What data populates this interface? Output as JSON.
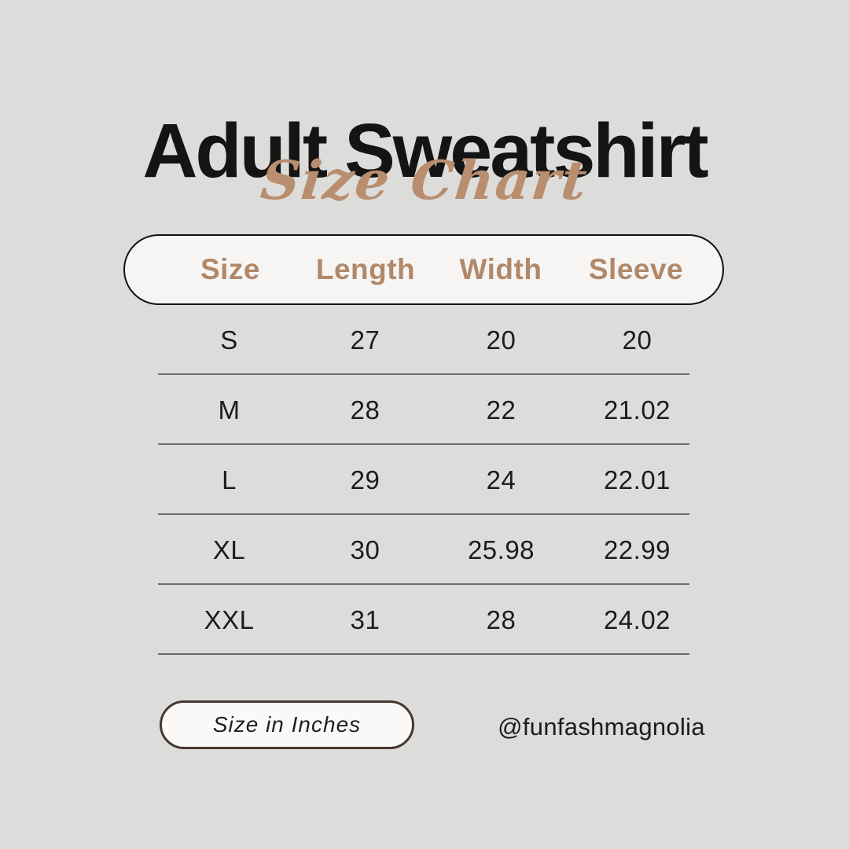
{
  "header": {
    "title": "Adult Sweatshirt",
    "subtitle": "Size Chart"
  },
  "table": {
    "columns": [
      "Size",
      "Length",
      "Width",
      "Sleeve"
    ],
    "rows": [
      {
        "cells": [
          "S",
          "27",
          "20",
          "20"
        ]
      },
      {
        "cells": [
          "M",
          "28",
          "22",
          "21.02"
        ]
      },
      {
        "cells": [
          "L",
          "29",
          "24",
          "22.01"
        ]
      },
      {
        "cells": [
          "XL",
          "30",
          "25.98",
          "22.99"
        ]
      },
      {
        "cells": [
          "XXL",
          "31",
          "28",
          "24.02"
        ]
      }
    ]
  },
  "footer": {
    "unit_label": "Size in Inches",
    "handle": "@funfashmagnolia"
  },
  "colors": {
    "background": "#dcdcda",
    "panel_fill": "#f6f5f3",
    "accent_tan": "#b1886a",
    "script_tan": "#b98e6f",
    "text": "#1c1c1c",
    "divider": "#6b6b6b",
    "header_border": "#121212",
    "footer_border": "#453830"
  },
  "chart_data": {
    "type": "table",
    "title": "Adult Sweatshirt Size Chart",
    "columns": [
      "Size",
      "Length",
      "Width",
      "Sleeve"
    ],
    "rows": [
      [
        "S",
        27,
        20,
        20
      ],
      [
        "M",
        28,
        22,
        21.02
      ],
      [
        "L",
        29,
        24,
        22.01
      ],
      [
        "XL",
        30,
        25.98,
        22.99
      ],
      [
        "XXL",
        31,
        28,
        24.02
      ]
    ],
    "units": "inches"
  }
}
